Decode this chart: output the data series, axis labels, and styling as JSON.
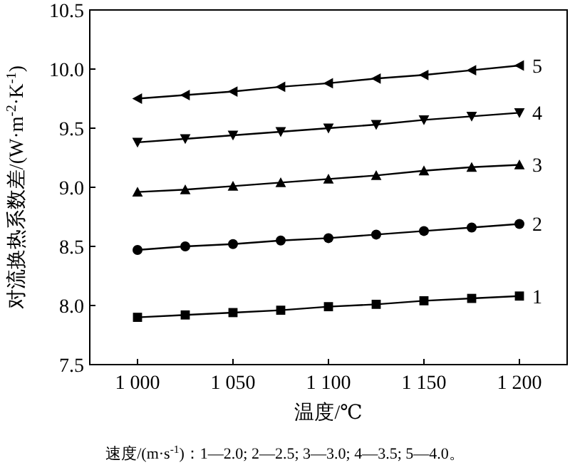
{
  "chart_data": {
    "type": "line",
    "xlabel": "温度/℃",
    "ylabel": "对流换热系数差/(W·m$^{-2}$·K$^{-1}$)",
    "x": [
      1000,
      1025,
      1050,
      1075,
      1100,
      1125,
      1150,
      1175,
      1200
    ],
    "xlim": [
      975,
      1225
    ],
    "xticks": [
      {
        "value": 1000,
        "label": "1 000"
      },
      {
        "value": 1050,
        "label": "1 050"
      },
      {
        "value": 1100,
        "label": "1 100"
      },
      {
        "value": 1150,
        "label": "1 150"
      },
      {
        "value": 1200,
        "label": "1 200"
      }
    ],
    "ylim": [
      7.5,
      10.5
    ],
    "yticks": [
      {
        "value": 7.5,
        "label": "7.5"
      },
      {
        "value": 8,
        "label": "8.0"
      },
      {
        "value": 8.5,
        "label": "8.5"
      },
      {
        "value": 9,
        "label": "9.0"
      },
      {
        "value": 9.5,
        "label": "9.5"
      },
      {
        "value": 10,
        "label": "10.0"
      },
      {
        "value": 10.5,
        "label": "10.5"
      }
    ],
    "grid": false,
    "line_style": "solid",
    "series": [
      {
        "name": "1",
        "color": "#000000",
        "marker": "square",
        "values": [
          7.9,
          7.92,
          7.94,
          7.96,
          7.99,
          8.01,
          8.04,
          8.06,
          8.08
        ]
      },
      {
        "name": "2",
        "color": "#000000",
        "marker": "circle",
        "values": [
          8.47,
          8.5,
          8.52,
          8.55,
          8.57,
          8.6,
          8.63,
          8.66,
          8.69
        ]
      },
      {
        "name": "3",
        "color": "#000000",
        "marker": "triangle",
        "values": [
          8.96,
          8.98,
          9.01,
          9.04,
          9.07,
          9.1,
          9.14,
          9.17,
          9.19
        ]
      },
      {
        "name": "4",
        "color": "#000000",
        "marker": "triangle-down",
        "values": [
          9.38,
          9.41,
          9.44,
          9.47,
          9.5,
          9.53,
          9.57,
          9.6,
          9.63
        ]
      },
      {
        "name": "5",
        "color": "#000000",
        "marker": "triangle-left",
        "values": [
          9.75,
          9.78,
          9.81,
          9.85,
          9.88,
          9.92,
          9.95,
          9.99,
          10.03
        ]
      }
    ],
    "annotations": [
      "速度/(m·s$^{-1}$)：1—2.0; 2—2.5; 3—3.0; 4—3.5; 5—4.0。"
    ]
  }
}
